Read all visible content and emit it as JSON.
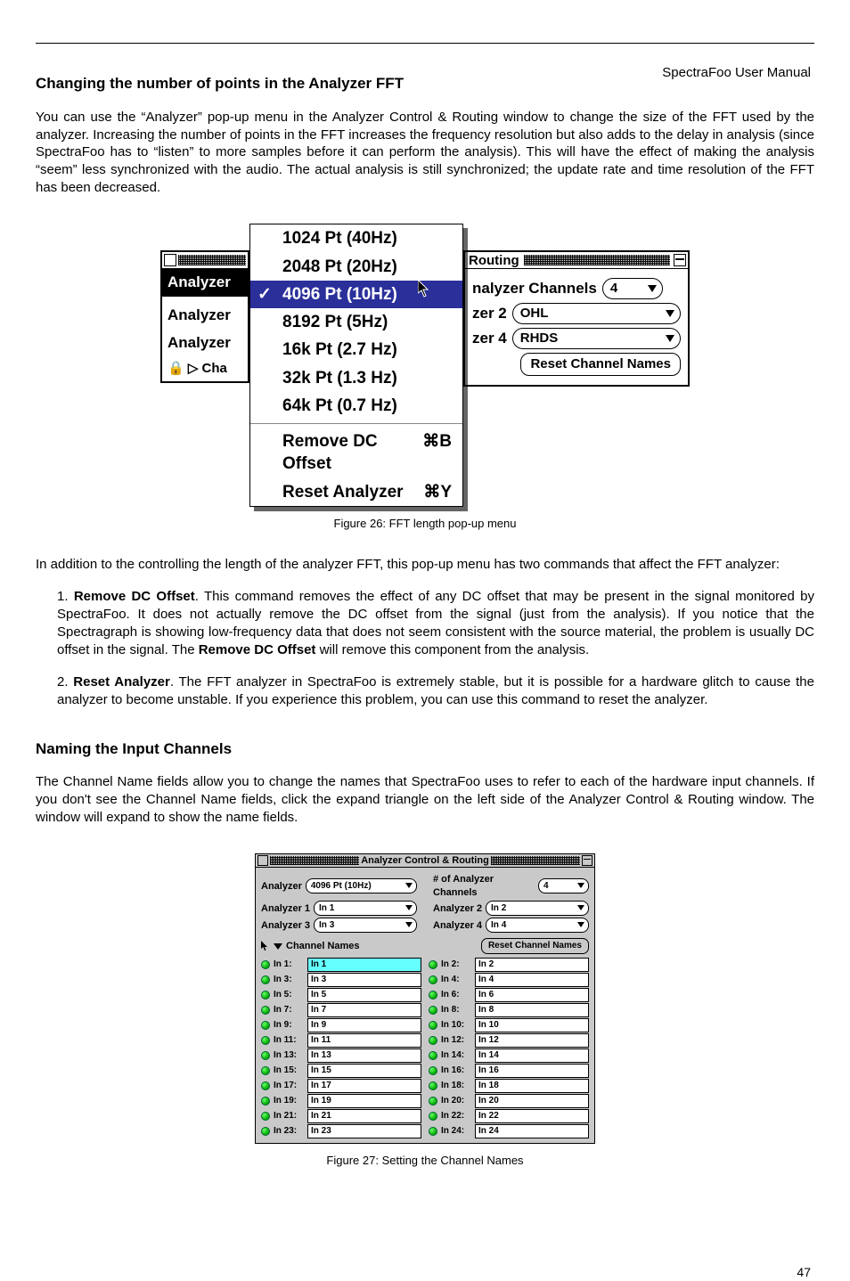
{
  "running_head": "SpectraFoo User Manual",
  "sec1": {
    "title": "Changing the number of points in the Analyzer FFT",
    "p1": "You can use the “Analyzer” pop-up menu in the Analyzer Control & Routing window to change the size of the FFT used by the analyzer. Increasing the number of points in the FFT increases the frequency resolution but also adds to the delay in analysis (since SpectraFoo has to “listen” to more samples before it can perform the analysis). This will have the effect of making the analysis “seem” less synchronized with the audio. The actual analysis is still synchronized; the update rate and time resolution of the FFT has been decreased.",
    "menu": {
      "items": [
        {
          "label": "1024 Pt (40Hz)"
        },
        {
          "label": "2048 Pt (20Hz)"
        },
        {
          "label": "4096 Pt (10Hz)",
          "selected": true,
          "checked": true
        },
        {
          "label": "8192 Pt (5Hz)"
        },
        {
          "label": "16k  Pt (2.7 Hz)"
        },
        {
          "label": "32k  Pt (1.3 Hz)"
        },
        {
          "label": "64k  Pt (0.7 Hz)"
        }
      ],
      "cmds": [
        {
          "label": "Remove DC Offset",
          "shortcut": "⌘B"
        },
        {
          "label": "Reset Analyzer",
          "shortcut": "⌘Y"
        }
      ]
    },
    "left_labels": [
      "Analyzer",
      "Analyzer",
      "Analyzer",
      "🔒  ▷ Cha"
    ],
    "routing": {
      "title": "Routing",
      "channels_label": "nalyzer Channels",
      "channels_value": "4",
      "rows": [
        {
          "lab": "zer 2",
          "val": "OHL"
        },
        {
          "lab": "zer 4",
          "val": "RHDS"
        }
      ],
      "reset": "Reset Channel Names"
    },
    "caption": "Figure 26: FFT length pop-up menu",
    "p2": "In addition to the controlling the length of the analyzer FFT, this pop-up menu has two commands that affect the FFT analyzer:",
    "li1a": "Remove DC Offset",
    "li1b": ". This command removes the effect of any DC offset that may be present in the signal monitored by SpectraFoo. It does not actually remove the DC offset from the signal (just from the analysis). If you notice that the Spectragraph is showing low-frequency data that does not seem consistent with the source material, the problem is usually DC offset in the signal. The ",
    "li1c": " will remove this component from the analysis.",
    "li2a": "Reset Analyzer",
    "li2b": ". The FFT analyzer in SpectraFoo is extremely stable, but it is possible for a hardware glitch to cause the analyzer to become unstable. If you experience this problem, you can use this command to reset the analyzer."
  },
  "sec2": {
    "title": "Naming the Input Channels",
    "p1": "The Channel Name fields allow you to change the names that SpectraFoo uses to refer to each of the hardware input channels. If you don't see the Channel Name fields, click the expand triangle on the left side of the Analyzer Control & Routing window. The window will expand to show the name fields.",
    "acr": {
      "title": "Analyzer Control & Routing",
      "analyzer_label": "Analyzer",
      "analyzer_value": "4096 Pt (10Hz)",
      "nchan_label": "# of Analyzer Channels",
      "nchan_value": "4",
      "an": [
        {
          "lab": "Analyzer 1",
          "val": "In 1"
        },
        {
          "lab": "Analyzer 2",
          "val": "In 2"
        },
        {
          "lab": "Analyzer 3",
          "val": "In 3"
        },
        {
          "lab": "Analyzer 4",
          "val": "In 4"
        }
      ],
      "ch_title": "Channel Names",
      "reset": "Reset Channel Names",
      "rows": [
        {
          "a_lab": "In 1:",
          "a_val": "In 1",
          "a_hl": true,
          "b_lab": "In 2:",
          "b_val": "In 2"
        },
        {
          "a_lab": "In 3:",
          "a_val": "In 3",
          "b_lab": "In 4:",
          "b_val": "In 4"
        },
        {
          "a_lab": "In 5:",
          "a_val": "In 5",
          "b_lab": "In 6:",
          "b_val": "In 6"
        },
        {
          "a_lab": "In 7:",
          "a_val": "In 7",
          "b_lab": "In 8:",
          "b_val": "In 8"
        },
        {
          "a_lab": "In 9:",
          "a_val": "In 9",
          "b_lab": "In 10:",
          "b_val": "In 10"
        },
        {
          "a_lab": "In 11:",
          "a_val": "In 11",
          "b_lab": "In 12:",
          "b_val": "In 12"
        },
        {
          "a_lab": "In 13:",
          "a_val": "In 13",
          "b_lab": "In 14:",
          "b_val": "In 14"
        },
        {
          "a_lab": "In 15:",
          "a_val": "In 15",
          "b_lab": "In 16:",
          "b_val": "In 16"
        },
        {
          "a_lab": "In 17:",
          "a_val": "In 17",
          "b_lab": "In 18:",
          "b_val": "In 18"
        },
        {
          "a_lab": "In 19:",
          "a_val": "In 19",
          "b_lab": "In 20:",
          "b_val": "In 20"
        },
        {
          "a_lab": "In 21:",
          "a_val": "In 21",
          "b_lab": "In 22:",
          "b_val": "In 22"
        },
        {
          "a_lab": "In 23:",
          "a_val": "In 23",
          "b_lab": "In 24:",
          "b_val": "In 24"
        }
      ]
    },
    "caption": "Figure 27: Setting the Channel Names"
  },
  "page_number": "47"
}
